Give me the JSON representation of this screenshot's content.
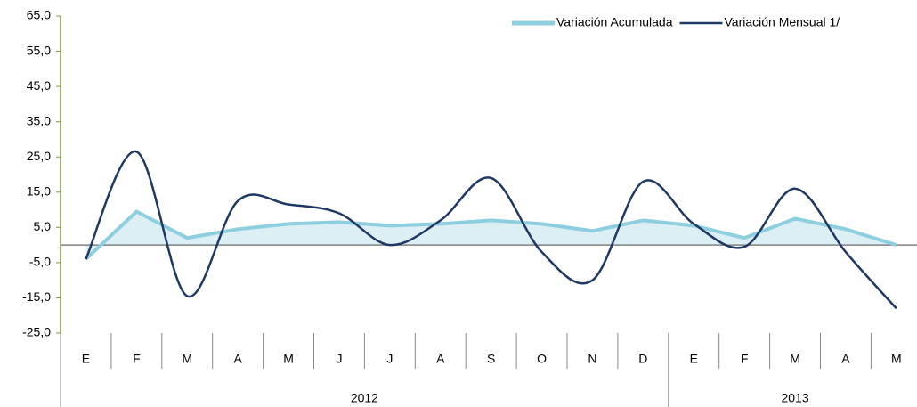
{
  "chart_data": {
    "type": "line",
    "categories": [
      "E",
      "F",
      "M",
      "A",
      "M",
      "J",
      "J",
      "A",
      "S",
      "O",
      "N",
      "D",
      "E",
      "F",
      "M",
      "A",
      "M"
    ],
    "groups": [
      {
        "label": "2012",
        "count": 12
      },
      {
        "label": "2013",
        "count": 5
      }
    ],
    "series": [
      {
        "name": "Variación Acumulada",
        "color": "#8ecfdf",
        "fill": "#dceff5",
        "style": "area",
        "values": [
          -4,
          9.5,
          2,
          4.5,
          6,
          6.5,
          5.5,
          6,
          7,
          6,
          4,
          7,
          5.5,
          2,
          7.5,
          4.5,
          0
        ]
      },
      {
        "name": "Variación Mensual 1/",
        "color": "#1f3864",
        "style": "smooth",
        "values": [
          -4,
          26.5,
          -14.5,
          12.5,
          11.5,
          9,
          0,
          7,
          19,
          -2,
          -10,
          18,
          6,
          -0.5,
          16,
          -2,
          -18
        ]
      }
    ],
    "ylim": [
      -25,
      65
    ],
    "yticks": [
      {
        "value": 65,
        "label": "65,0"
      },
      {
        "value": 55,
        "label": "55,0"
      },
      {
        "value": 45,
        "label": "45,0"
      },
      {
        "value": 35,
        "label": "35,0"
      },
      {
        "value": 25,
        "label": "25,0"
      },
      {
        "value": 15,
        "label": "15,0"
      },
      {
        "value": 5,
        "label": "5,0"
      },
      {
        "value": -5,
        "label": "-5,0"
      },
      {
        "value": -15,
        "label": "-15,0"
      },
      {
        "value": -25,
        "label": "-25,0"
      }
    ],
    "legend": "top-right"
  }
}
